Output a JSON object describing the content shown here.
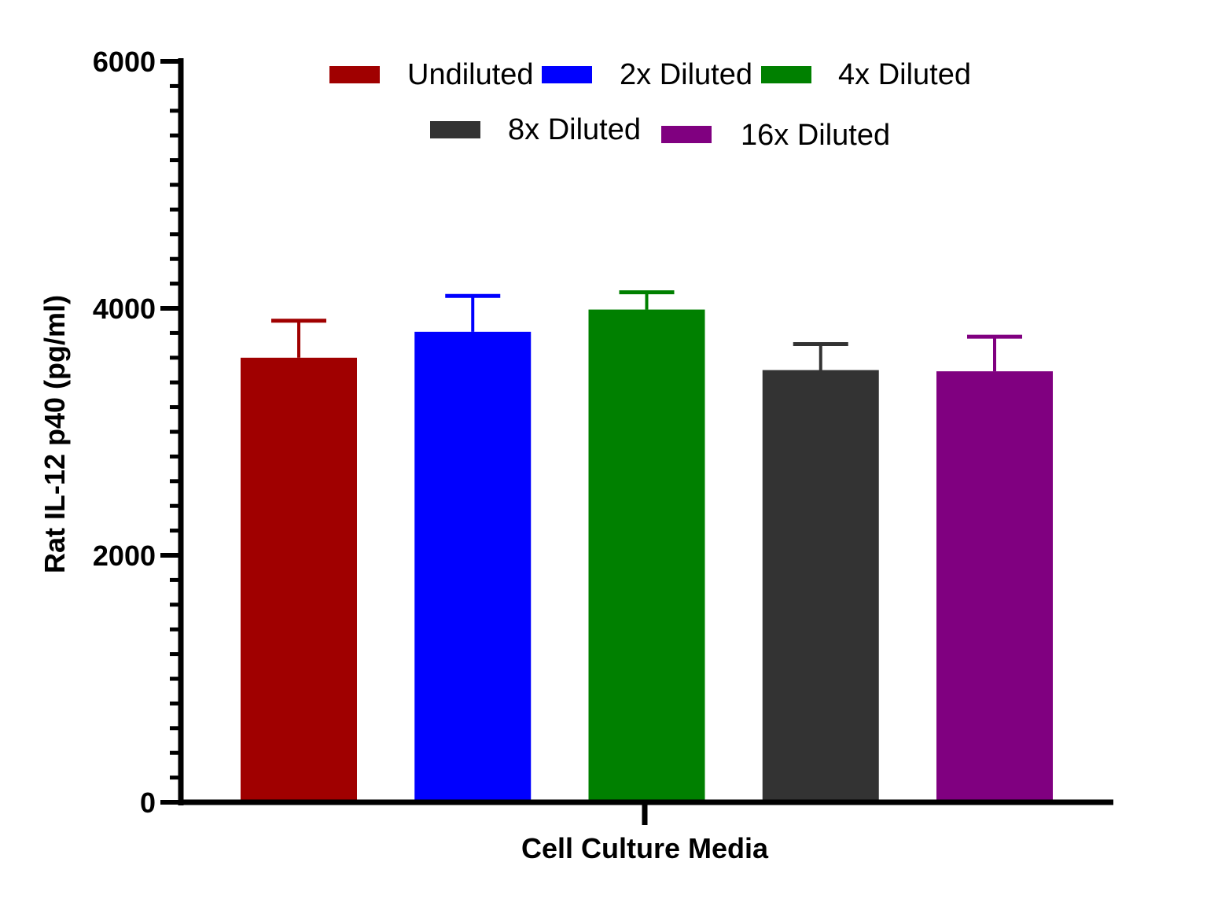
{
  "chart_data": {
    "type": "bar",
    "title": "",
    "xlabel": "Cell  Culture Media",
    "ylabel": "Rat IL-12 p40 (pg/ml)",
    "ylim": [
      0,
      6000
    ],
    "yticks": [
      0,
      2000,
      4000,
      6000
    ],
    "minor_tick_step": 200,
    "legend_position": "top",
    "series": [
      {
        "name": "Undiluted",
        "value": 3600,
        "error": 300,
        "color": "#a00000"
      },
      {
        "name": "2x Diluted",
        "value": 3810,
        "error": 290,
        "color": "#0000ff"
      },
      {
        "name": "4x Diluted",
        "value": 3990,
        "error": 140,
        "color": "#008000"
      },
      {
        "name": "8x Diluted",
        "value": 3500,
        "error": 210,
        "color": "#333333"
      },
      {
        "name": "16x Diluted",
        "value": 3490,
        "error": 280,
        "color": "#800080"
      }
    ]
  }
}
